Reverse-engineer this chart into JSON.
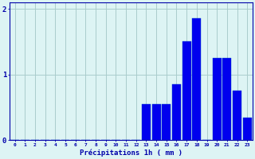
{
  "hours": [
    0,
    1,
    2,
    3,
    4,
    5,
    6,
    7,
    8,
    9,
    10,
    11,
    12,
    13,
    14,
    15,
    16,
    17,
    18,
    19,
    20,
    21,
    22,
    23
  ],
  "values": [
    0,
    0,
    0,
    0,
    0,
    0,
    0,
    0,
    0,
    0,
    0,
    0,
    0,
    0.55,
    0.55,
    0.55,
    0.85,
    1.5,
    1.85,
    0,
    1.25,
    1.25,
    0.75,
    0.35
  ],
  "bar_color": "#0000ee",
  "bar_edge_color": "#0044cc",
  "bg_color": "#ddf4f4",
  "grid_color": "#aacccc",
  "axis_color": "#0000aa",
  "xlabel": "Précipitations 1h ( mm )",
  "ylim": [
    0,
    2.1
  ],
  "yticks": [
    0,
    1,
    2
  ],
  "figsize": [
    3.2,
    2.0
  ],
  "dpi": 100
}
